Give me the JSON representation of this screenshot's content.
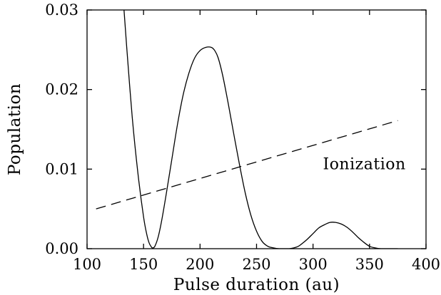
{
  "chart_data": {
    "type": "line",
    "title": "",
    "xlabel": "Pulse duration (au)",
    "ylabel": "Population",
    "xlim": [
      100,
      400
    ],
    "ylim": [
      0,
      0.03
    ],
    "x_ticks": [
      100,
      150,
      200,
      250,
      300,
      350,
      400
    ],
    "x_tick_labels": [
      "100",
      "150",
      "200",
      "250",
      "300",
      "350",
      "400"
    ],
    "y_ticks": [
      0,
      0.01,
      0.02,
      0.03
    ],
    "y_tick_labels": [
      "0.00",
      "0.01",
      "0.02",
      "0.03"
    ],
    "grid": false,
    "legend": "none",
    "annotations": [
      {
        "text": "Ionization",
        "x": 310,
        "y": 0.0107
      }
    ],
    "series": [
      {
        "name": "",
        "style": "solid",
        "color": "#000000",
        "x": [
          132.5,
          135,
          140,
          145,
          150,
          153,
          155,
          157,
          158,
          160,
          163,
          166,
          170,
          175,
          180,
          185,
          190,
          195,
          200,
          205,
          210,
          213,
          216,
          220,
          225,
          230,
          235,
          240,
          245,
          250,
          255,
          260,
          265,
          270,
          275,
          279,
          283,
          287,
          290,
          295,
          300,
          305,
          310,
          315,
          320,
          325,
          330,
          335,
          340,
          345,
          350,
          355,
          360,
          365,
          370,
          375
        ],
        "y": [
          0.0304,
          0.0255,
          0.0165,
          0.0095,
          0.004,
          0.0017,
          0.0007,
          0.0002,
          0.0001,
          0.0003,
          0.0015,
          0.0035,
          0.0068,
          0.0112,
          0.0156,
          0.0193,
          0.022,
          0.0239,
          0.0249,
          0.0253,
          0.0253,
          0.0249,
          0.024,
          0.0218,
          0.0182,
          0.0143,
          0.0105,
          0.007,
          0.0042,
          0.0022,
          0.0009,
          0.0003,
          0.0001,
          0.0,
          0.0,
          0.0,
          0.0001,
          0.0003,
          0.0006,
          0.0012,
          0.0019,
          0.0026,
          0.003,
          0.0033,
          0.0033,
          0.0031,
          0.0027,
          0.0021,
          0.0014,
          0.0008,
          0.0003,
          0.0001,
          0.0,
          0.0,
          0.0,
          0.0
        ]
      },
      {
        "name": "Ionization",
        "style": "dashed",
        "color": "#000000",
        "x": [
          108,
          375
        ],
        "y": [
          0.005,
          0.0161
        ]
      }
    ]
  }
}
